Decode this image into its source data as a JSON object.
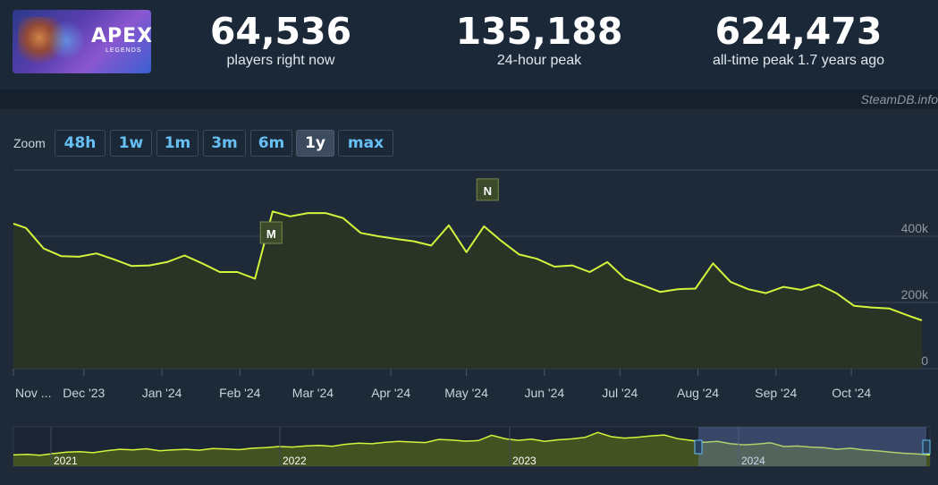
{
  "header": {
    "logo": {
      "title": "APEX",
      "subtitle": "LEGENDS"
    },
    "stats": [
      {
        "value": "64,536",
        "label": "players right now"
      },
      {
        "value": "135,188",
        "label": "24-hour peak"
      },
      {
        "value": "624,473",
        "label": "all-time peak 1.7 years ago"
      }
    ],
    "credit": "SteamDB.info"
  },
  "zoom": {
    "label": "Zoom",
    "buttons": [
      "48h",
      "1w",
      "1m",
      "3m",
      "6m",
      "1y",
      "max"
    ],
    "active": "1y"
  },
  "colors": {
    "line": "#d2f53c",
    "accent": "#66c0f4",
    "background": "#1f2a39"
  },
  "chart_data": {
    "type": "line",
    "y_ticks": [
      "0",
      "200k",
      "400k"
    ],
    "ylim": [
      0,
      600000
    ],
    "x_ticks": [
      "Nov ...",
      "Dec '23",
      "Jan '24",
      "Feb '24",
      "Mar '24",
      "Apr '24",
      "May '24",
      "Jun '24",
      "Jul '24",
      "Aug '24",
      "Sep '24",
      "Oct '24"
    ],
    "x_tick_days": [
      0,
      28,
      59,
      90,
      119,
      150,
      180,
      211,
      241,
      272,
      303,
      333
    ],
    "grid": true,
    "series": [
      {
        "x": [
          0,
          5,
          12,
          19,
          26,
          33,
          40,
          47,
          54,
          61,
          68,
          75,
          82,
          89,
          96,
          103,
          110,
          117,
          124,
          131,
          138,
          145,
          152,
          159,
          166,
          173,
          180,
          187,
          194,
          201,
          208,
          215,
          222,
          229,
          236,
          243,
          250,
          257,
          264,
          271,
          278,
          285,
          292,
          299,
          306,
          313,
          320,
          327,
          334,
          341,
          348,
          355,
          361
        ],
        "values": [
          438000,
          425000,
          363000,
          340000,
          338000,
          348000,
          330000,
          310000,
          312000,
          322000,
          342000,
          318000,
          292000,
          292000,
          272000,
          475000,
          460000,
          470000,
          470000,
          455000,
          410000,
          400000,
          392000,
          385000,
          372000,
          433000,
          352000,
          430000,
          385000,
          345000,
          332000,
          308000,
          312000,
          292000,
          322000,
          272000,
          252000,
          232000,
          240000,
          242000,
          318000,
          262000,
          240000,
          228000,
          247000,
          238000,
          254000,
          228000,
          190000,
          185000,
          182000,
          162000,
          146000
        ]
      }
    ],
    "annotations": [
      {
        "label": "M",
        "x_day": 101
      },
      {
        "label": "N",
        "x_day": 187
      }
    ],
    "navigator": {
      "year_labels": [
        "2021",
        "2022",
        "2023",
        "2024"
      ],
      "values": [
        40,
        42,
        39,
        45,
        50,
        52,
        48,
        55,
        60,
        58,
        62,
        55,
        58,
        60,
        57,
        63,
        61,
        59,
        64,
        66,
        70,
        68,
        72,
        74,
        71,
        78,
        82,
        80,
        85,
        88,
        86,
        84,
        95,
        93,
        89,
        91,
        110,
        98,
        92,
        96,
        88,
        94,
        97,
        102,
        120,
        105,
        100,
        103,
        108,
        111,
        98,
        92,
        85,
        88,
        80,
        76,
        79,
        83,
        70,
        72,
        68,
        66,
        60,
        64,
        58,
        55,
        50,
        46,
        44,
        40
      ]
    }
  }
}
